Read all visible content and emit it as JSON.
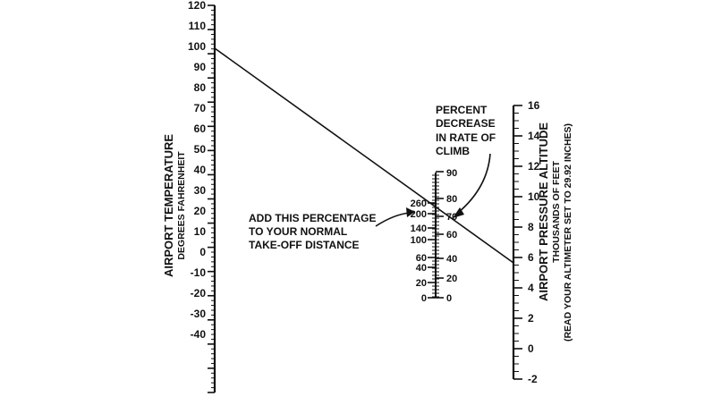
{
  "temperature_scale": {
    "title": "AIRPORT TEMPERATURE",
    "subtitle": "DEGREES FAHRENHEIT",
    "ticks": [
      "120",
      "110",
      "100",
      "90",
      "80",
      "70",
      "60",
      "50",
      "40",
      "30",
      "20",
      "10",
      "0",
      "-10",
      "-20",
      "-30",
      "-40"
    ],
    "range": [
      -40,
      120
    ]
  },
  "altitude_scale": {
    "title": "AIRPORT PRESSURE ALTITUDE",
    "subtitle": "THOUSANDS OF FEET",
    "note": "(READ YOUR ALTIMETER SET TO 29.92 INCHES)",
    "ticks": [
      "16",
      "14",
      "12",
      "10",
      "8",
      "6",
      "4",
      "2",
      "0",
      "-2"
    ],
    "range": [
      -2,
      16
    ]
  },
  "takeoff_scale": {
    "ticks": [
      "260",
      "200",
      "140",
      "100",
      "60",
      "40",
      "20",
      "0"
    ]
  },
  "climb_scale": {
    "ticks": [
      "90",
      "80",
      "70",
      "60",
      "40",
      "20",
      "0"
    ]
  },
  "annotations": {
    "climb_line1": "PERCENT",
    "climb_line2": "DECREASE",
    "climb_line3": "IN RATE OF",
    "climb_line4": "CLIMB",
    "takeoff_line1": "ADD THIS PERCENTAGE",
    "takeoff_line2": "TO YOUR NORMAL",
    "takeoff_line3": "TAKE-OFF DISTANCE"
  },
  "example_line": {
    "temperature_f": 100,
    "pressure_altitude_kft": 6
  }
}
